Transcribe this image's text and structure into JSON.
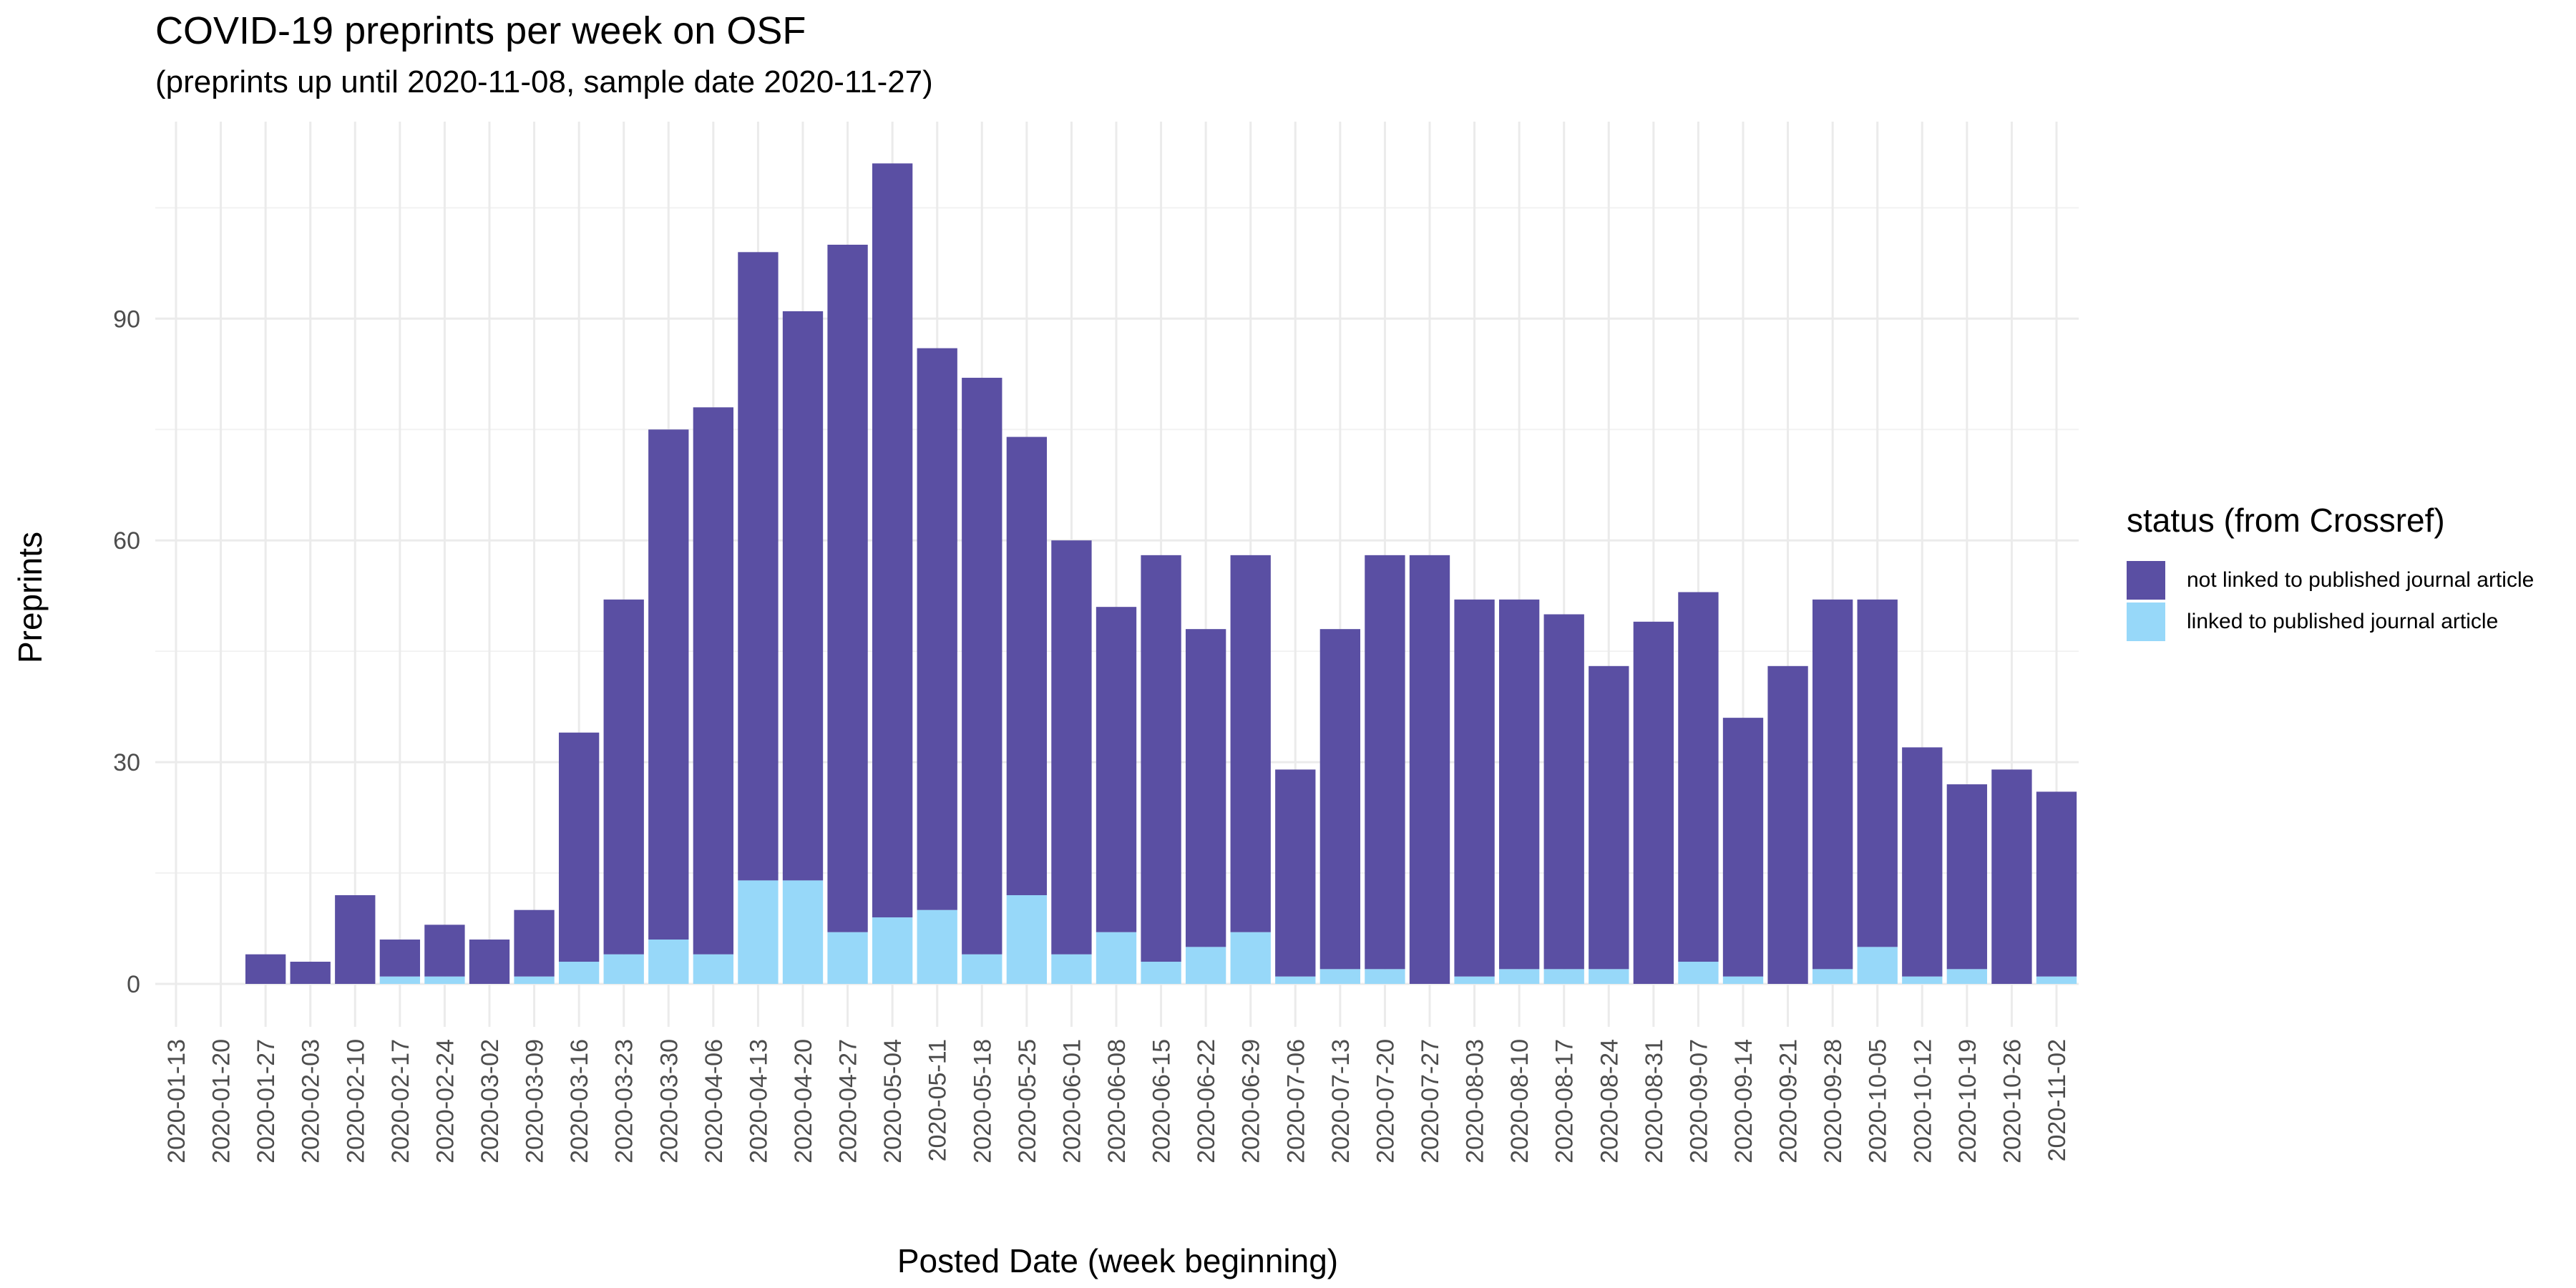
{
  "chart_data": {
    "type": "bar",
    "stacked": true,
    "title": "COVID-19 preprints per week on OSF",
    "subtitle": "(preprints up until 2020-11-08, sample date 2020-11-27)",
    "xlabel": "Posted Date (week beginning)",
    "ylabel": "Preprints",
    "ylim": [
      0,
      115
    ],
    "yticks": [
      0,
      30,
      60,
      90
    ],
    "grid": true,
    "legend_title": "status (from Crossref)",
    "legend_position": "right",
    "categories": [
      "2020-01-13",
      "2020-01-20",
      "2020-01-27",
      "2020-02-03",
      "2020-02-10",
      "2020-02-17",
      "2020-02-24",
      "2020-03-02",
      "2020-03-09",
      "2020-03-16",
      "2020-03-23",
      "2020-03-30",
      "2020-04-06",
      "2020-04-13",
      "2020-04-20",
      "2020-04-27",
      "2020-05-04",
      "2020-05-11",
      "2020-05-18",
      "2020-05-25",
      "2020-06-01",
      "2020-06-08",
      "2020-06-15",
      "2020-06-22",
      "2020-06-29",
      "2020-07-06",
      "2020-07-13",
      "2020-07-20",
      "2020-07-27",
      "2020-08-03",
      "2020-08-10",
      "2020-08-17",
      "2020-08-24",
      "2020-08-31",
      "2020-09-07",
      "2020-09-14",
      "2020-09-21",
      "2020-09-28",
      "2020-10-05",
      "2020-10-12",
      "2020-10-19",
      "2020-10-26",
      "2020-11-02"
    ],
    "series": [
      {
        "name": "not linked to published journal article",
        "color": "#5a4fa3",
        "values": [
          0,
          0,
          4,
          3,
          12,
          5,
          7,
          6,
          9,
          31,
          48,
          69,
          74,
          85,
          77,
          93,
          102,
          76,
          78,
          62,
          56,
          44,
          55,
          43,
          51,
          28,
          46,
          56,
          58,
          51,
          50,
          48,
          41,
          49,
          50,
          35,
          43,
          50,
          47,
          31,
          25,
          29,
          25
        ]
      },
      {
        "name": "linked to published journal article",
        "color": "#97d8f9",
        "values": [
          0,
          0,
          0,
          0,
          0,
          1,
          1,
          0,
          1,
          3,
          4,
          6,
          4,
          14,
          14,
          7,
          9,
          10,
          4,
          12,
          4,
          7,
          3,
          5,
          7,
          1,
          2,
          2,
          0,
          1,
          2,
          2,
          2,
          0,
          3,
          1,
          0,
          2,
          5,
          1,
          2,
          0,
          1
        ]
      }
    ]
  }
}
